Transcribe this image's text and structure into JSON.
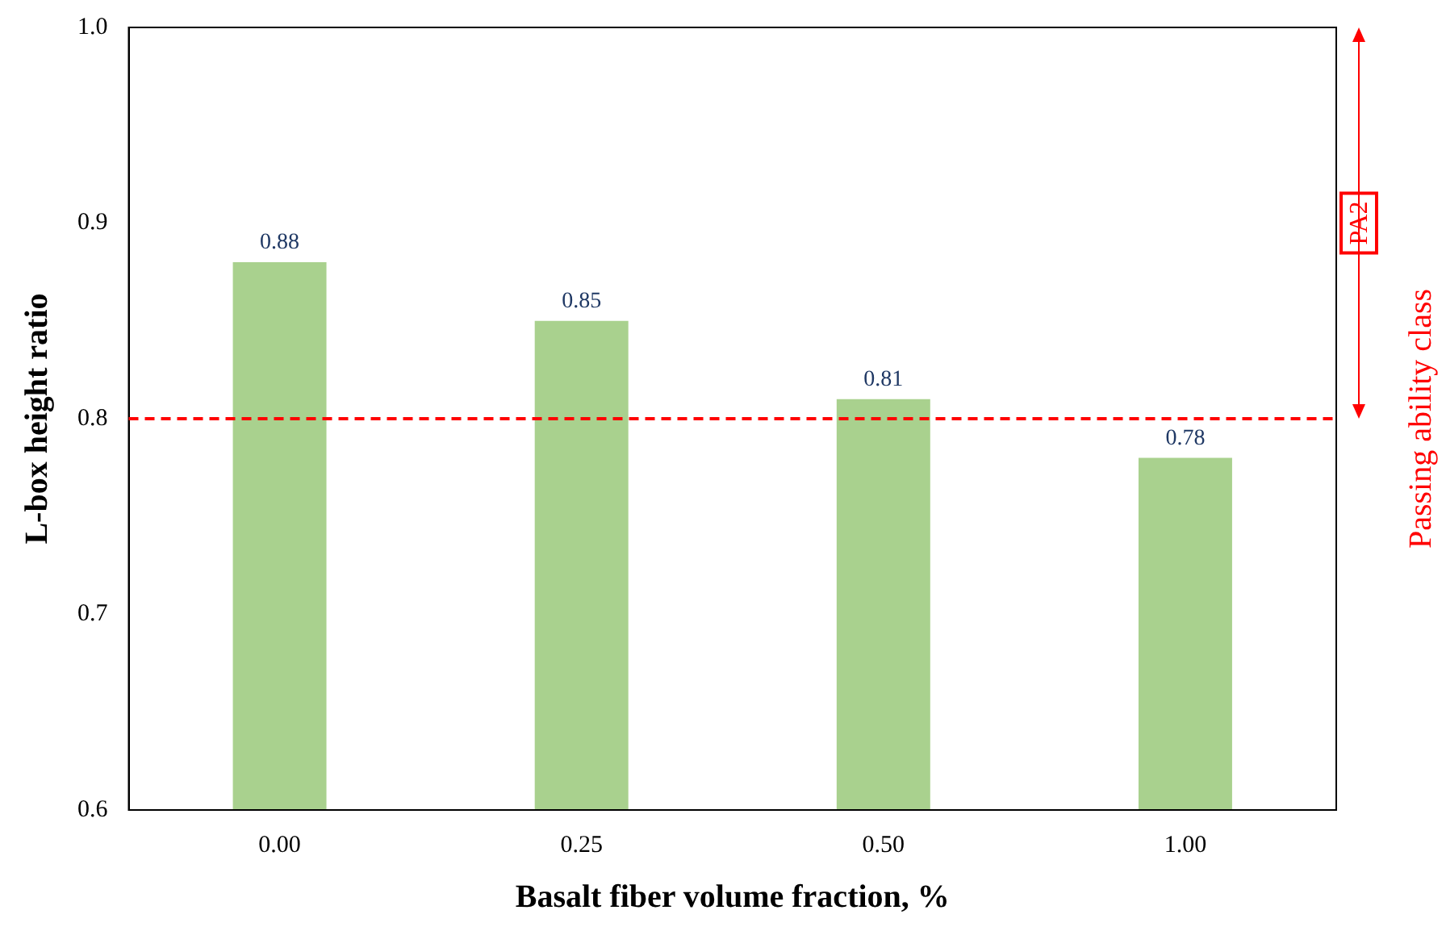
{
  "chart_data": {
    "type": "bar",
    "xlabel": "Basalt fiber volume fraction, %",
    "ylabel": "L-box height ratio",
    "y2label": "Passing ability class",
    "categories": [
      "0.00",
      "0.25",
      "0.50",
      "1.00"
    ],
    "values": [
      0.88,
      0.85,
      0.81,
      0.78
    ],
    "color": "#a9d18e",
    "ylim": [
      0.6,
      1
    ],
    "yticks": [
      0.6,
      0.7,
      0.8,
      0.9,
      {
        "value": 1,
        "label": "1.0"
      }
    ],
    "grid": false,
    "legend": false,
    "data_labels": true,
    "ref_lines": [
      {
        "axis": "y",
        "value": 0.8,
        "color": "#ff0000",
        "line_style": "dashed"
      }
    ],
    "annotations": [
      "PA2"
    ]
  }
}
